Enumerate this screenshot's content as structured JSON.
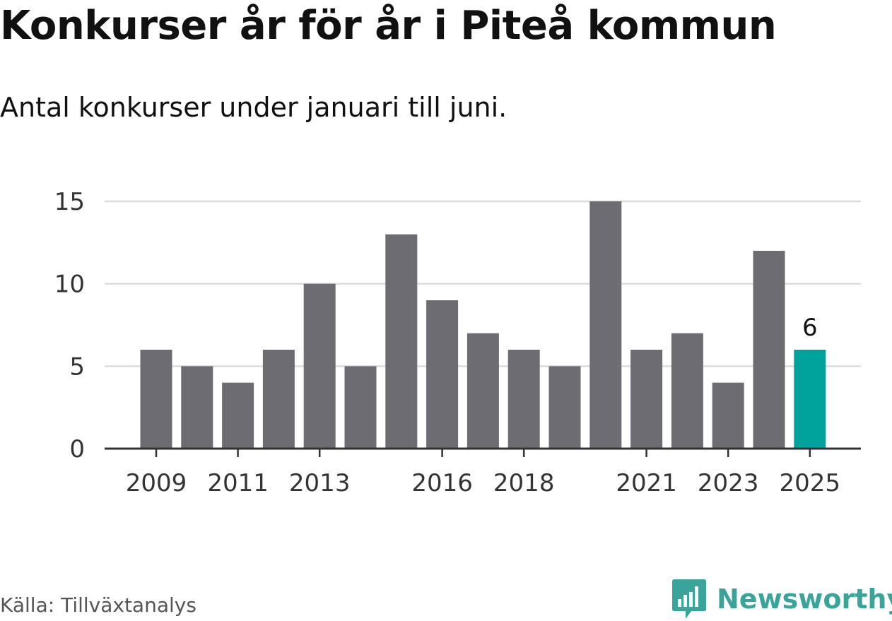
{
  "title": "Konkurser år för år i Piteå kommun",
  "subtitle": "Antal konkurser under januari till juni.",
  "source": "Källa: Tillväxtanalys",
  "brand": {
    "name": "Newsworthy",
    "icon": "bar-chart-speech-bubble-icon"
  },
  "colors": {
    "bar": "#6d6c72",
    "highlight": "#00a39b",
    "grid": "#dcdcdc",
    "axis": "#333333",
    "brand": "#3aa39a"
  },
  "chart_data": {
    "type": "bar",
    "categories": [
      "2009",
      "2010",
      "2011",
      "2012",
      "2013",
      "2014",
      "2015",
      "2016",
      "2017",
      "2018",
      "2019",
      "2020",
      "2021",
      "2022",
      "2023",
      "2024",
      "2025"
    ],
    "values": [
      6,
      5,
      4,
      6,
      10,
      5,
      13,
      9,
      7,
      6,
      5,
      15,
      6,
      7,
      4,
      12,
      6
    ],
    "x_tick_labels": [
      "2009",
      "2011",
      "2013",
      "2016",
      "2018",
      "2021",
      "2023",
      "2025"
    ],
    "y_ticks": [
      0,
      5,
      10,
      15
    ],
    "ylim": [
      0,
      15
    ],
    "grid": true,
    "highlight_category": "2025",
    "data_labels": [
      {
        "category": "2025",
        "value": "6"
      }
    ],
    "xlabel": "",
    "ylabel": ""
  }
}
